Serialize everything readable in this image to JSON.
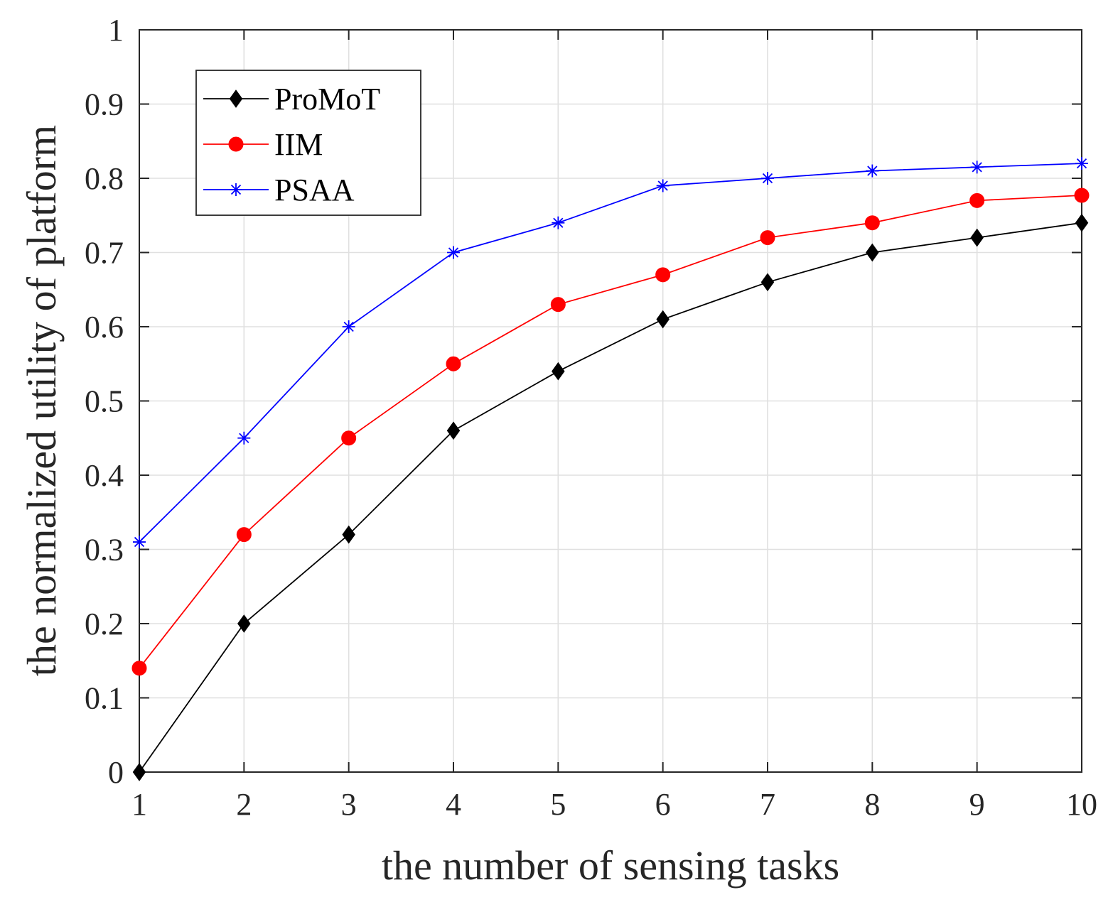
{
  "chart_data": {
    "type": "line",
    "title": "",
    "xlabel": "the number of sensing tasks",
    "ylabel": "the normalized utility of platform",
    "x": [
      1,
      2,
      3,
      4,
      5,
      6,
      7,
      8,
      9,
      10
    ],
    "xlim": [
      1,
      10
    ],
    "ylim": [
      0,
      1
    ],
    "xticks": [
      "1",
      "2",
      "3",
      "4",
      "5",
      "6",
      "7",
      "8",
      "9",
      "10"
    ],
    "yticks": [
      "0",
      "0.1",
      "0.2",
      "0.3",
      "0.4",
      "0.5",
      "0.6",
      "0.7",
      "0.8",
      "0.9",
      "1"
    ],
    "grid": true,
    "legend_position": "top-left",
    "series": [
      {
        "name": "ProMoT",
        "color": "#000000",
        "marker": "diamond",
        "values": [
          0.0,
          0.2,
          0.32,
          0.46,
          0.54,
          0.61,
          0.66,
          0.7,
          0.72,
          0.74
        ]
      },
      {
        "name": "IIM",
        "color": "#ff0000",
        "marker": "circle",
        "values": [
          0.14,
          0.32,
          0.45,
          0.55,
          0.63,
          0.67,
          0.72,
          0.74,
          0.77,
          0.777
        ]
      },
      {
        "name": "PSAA",
        "color": "#0000ff",
        "marker": "asterisk",
        "values": [
          0.31,
          0.45,
          0.6,
          0.7,
          0.74,
          0.79,
          0.8,
          0.81,
          0.815,
          0.82
        ]
      }
    ]
  }
}
